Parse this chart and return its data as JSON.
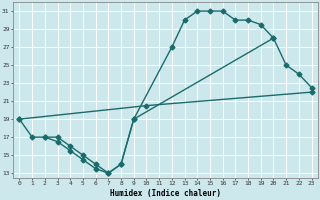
{
  "title": "",
  "xlabel": "Humidex (Indice chaleur)",
  "bg_color": "#cce8ec",
  "line_color": "#1a6b6b",
  "grid_color": "#b8d8dc",
  "xlim": [
    -0.5,
    23.5
  ],
  "ylim": [
    12.5,
    32
  ],
  "xticks": [
    0,
    1,
    2,
    3,
    4,
    5,
    6,
    7,
    8,
    9,
    10,
    11,
    12,
    13,
    14,
    15,
    16,
    17,
    18,
    19,
    20,
    21,
    22,
    23
  ],
  "yticks": [
    13,
    15,
    17,
    19,
    21,
    23,
    25,
    27,
    29,
    31
  ],
  "line1_x": [
    0,
    1,
    2,
    3,
    4,
    5,
    6,
    7,
    8,
    9,
    12,
    13,
    14,
    15,
    16,
    17,
    18,
    19,
    20
  ],
  "line1_y": [
    19,
    17,
    17,
    17,
    16,
    15,
    14,
    13,
    14,
    19,
    27,
    30,
    31,
    31,
    31,
    30,
    30,
    29.5,
    28
  ],
  "line2_x": [
    0,
    10,
    23
  ],
  "line2_y": [
    19,
    20.5,
    22
  ],
  "line3_x": [
    2,
    3,
    4,
    5,
    6,
    7,
    8,
    9,
    20,
    21,
    22,
    23
  ],
  "line3_y": [
    17,
    16.5,
    15.5,
    14.5,
    13.5,
    13,
    14,
    19,
    28,
    25,
    24,
    22.5
  ],
  "marker_size": 2.5,
  "line_width": 1.0
}
